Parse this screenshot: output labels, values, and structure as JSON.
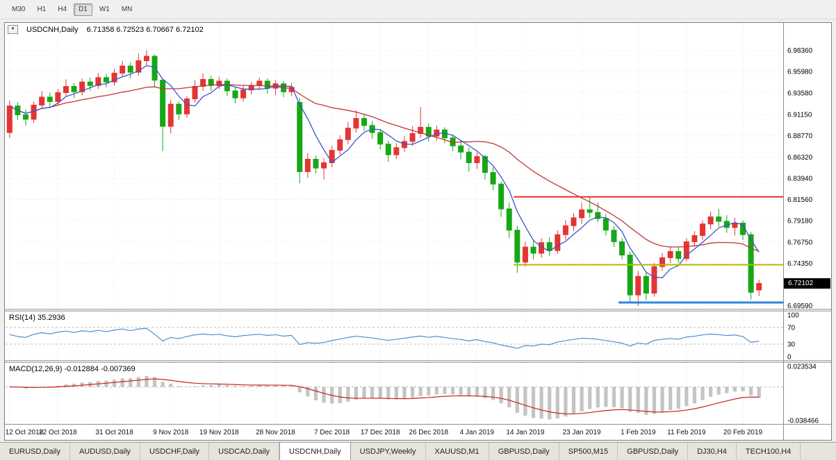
{
  "toolbar": {
    "timeframes": [
      "M30",
      "H1",
      "H4",
      "D1",
      "W1",
      "MN"
    ],
    "active": "D1"
  },
  "chart": {
    "headers": {
      "main_symbol": "USDCNH,Daily",
      "main_ohlc": "6.71358 6.72523 6.70667 6.72102",
      "rsi": "RSI(14) 35.2936",
      "macd": "MACD(12,26,9) -0.012884 -0.007369"
    },
    "price_axis": {
      "current_price": "6.72102"
    }
  },
  "chart_data": {
    "type": "candlestick",
    "symbol": "USDCNH",
    "timeframe": "Daily",
    "current_ohlc": {
      "open": 6.71358,
      "high": 6.72523,
      "low": 6.70667,
      "close": 6.72102
    },
    "up_color": "#e43434",
    "down_color": "#16a716",
    "y_axis_labels": [
      {
        "text": "6.98360",
        "price": 6.9836
      },
      {
        "text": "6.95980",
        "price": 6.9598
      },
      {
        "text": "6.93580",
        "price": 6.9358
      },
      {
        "text": "6.91150",
        "price": 6.9115
      },
      {
        "text": "6.88770",
        "price": 6.8877
      },
      {
        "text": "6.86320",
        "price": 6.8632
      },
      {
        "text": "6.83940",
        "price": 6.8394
      },
      {
        "text": "6.81560",
        "price": 6.8156
      },
      {
        "text": "6.79180",
        "price": 6.7918
      },
      {
        "text": "6.76750",
        "price": 6.7675
      },
      {
        "text": "6.74350",
        "price": 6.7435
      },
      {
        "text": "6.69590",
        "price": 6.6959
      }
    ],
    "x_ticks": [
      {
        "bar": 0,
        "label": "12 Oct 2018"
      },
      {
        "bar": 6,
        "label": "22 Oct 2018"
      },
      {
        "bar": 13,
        "label": "31 Oct 2018"
      },
      {
        "bar": 20,
        "label": "9 Nov 2018"
      },
      {
        "bar": 26,
        "label": "19 Nov 2018"
      },
      {
        "bar": 33,
        "label": "28 Nov 2018"
      },
      {
        "bar": 40,
        "label": "7 Dec 2018"
      },
      {
        "bar": 46,
        "label": "17 Dec 2018"
      },
      {
        "bar": 52,
        "label": "26 Dec 2018"
      },
      {
        "bar": 58,
        "label": "4 Jan 2019"
      },
      {
        "bar": 64,
        "label": "14 Jan 2019"
      },
      {
        "bar": 71,
        "label": "23 Jan 2019"
      },
      {
        "bar": 78,
        "label": "1 Feb 2019"
      },
      {
        "bar": 84,
        "label": "11 Feb 2019"
      },
      {
        "bar": 91,
        "label": "20 Feb 2019"
      }
    ],
    "candles": [
      [
        6.891,
        6.927,
        6.885,
        6.921
      ],
      [
        6.921,
        6.925,
        6.905,
        6.911
      ],
      [
        6.911,
        6.917,
        6.899,
        6.906
      ],
      [
        6.906,
        6.926,
        6.902,
        6.922
      ],
      [
        6.922,
        6.938,
        6.918,
        6.931
      ],
      [
        6.931,
        6.936,
        6.92,
        6.926
      ],
      [
        6.926,
        6.94,
        6.922,
        6.936
      ],
      [
        6.936,
        6.951,
        6.932,
        6.943
      ],
      [
        6.943,
        6.947,
        6.93,
        6.937
      ],
      [
        6.937,
        6.952,
        6.933,
        6.948
      ],
      [
        6.948,
        6.953,
        6.938,
        6.944
      ],
      [
        6.944,
        6.958,
        6.94,
        6.953
      ],
      [
        6.953,
        6.957,
        6.942,
        6.948
      ],
      [
        6.948,
        6.963,
        6.944,
        6.958
      ],
      [
        6.958,
        6.972,
        6.954,
        6.966
      ],
      [
        6.966,
        6.97,
        6.952,
        6.959
      ],
      [
        6.959,
        6.98,
        6.955,
        6.972
      ],
      [
        6.972,
        6.9836,
        6.966,
        6.977
      ],
      [
        6.977,
        6.979,
        6.942,
        6.95
      ],
      [
        6.95,
        6.952,
        6.87,
        6.898
      ],
      [
        6.898,
        6.928,
        6.89,
        6.923
      ],
      [
        6.923,
        6.926,
        6.905,
        6.912
      ],
      [
        6.912,
        6.932,
        6.908,
        6.929
      ],
      [
        6.929,
        6.95,
        6.925,
        6.943
      ],
      [
        6.943,
        6.958,
        6.938,
        6.951
      ],
      [
        6.951,
        6.955,
        6.938,
        6.944
      ],
      [
        6.944,
        6.954,
        6.94,
        6.949
      ],
      [
        6.949,
        6.952,
        6.932,
        6.938
      ],
      [
        6.938,
        6.942,
        6.924,
        6.93
      ],
      [
        6.93,
        6.944,
        6.926,
        6.939
      ],
      [
        6.939,
        6.948,
        6.934,
        6.944
      ],
      [
        6.944,
        6.953,
        6.939,
        6.949
      ],
      [
        6.949,
        6.952,
        6.935,
        6.941
      ],
      [
        6.941,
        6.95,
        6.933,
        6.946
      ],
      [
        6.946,
        6.949,
        6.931,
        6.937
      ],
      [
        6.937,
        6.947,
        6.932,
        6.942
      ],
      [
        6.925,
        6.93,
        6.834,
        6.847
      ],
      [
        6.847,
        6.868,
        6.84,
        6.861
      ],
      [
        6.861,
        6.865,
        6.845,
        6.851
      ],
      [
        6.851,
        6.862,
        6.838,
        6.857
      ],
      [
        6.857,
        6.876,
        6.852,
        6.871
      ],
      [
        6.871,
        6.888,
        6.866,
        6.883
      ],
      [
        6.883,
        6.903,
        6.878,
        6.896
      ],
      [
        6.896,
        6.916,
        6.891,
        6.907
      ],
      [
        6.907,
        6.912,
        6.893,
        6.899
      ],
      [
        6.899,
        6.904,
        6.884,
        6.891
      ],
      [
        6.891,
        6.895,
        6.872,
        6.878
      ],
      [
        6.878,
        6.882,
        6.858,
        6.866
      ],
      [
        6.866,
        6.879,
        6.861,
        6.874
      ],
      [
        6.874,
        6.887,
        6.869,
        6.881
      ],
      [
        6.881,
        6.898,
        6.876,
        6.89
      ],
      [
        6.89,
        6.92,
        6.885,
        6.897
      ],
      [
        6.897,
        6.901,
        6.881,
        6.887
      ],
      [
        6.887,
        6.899,
        6.882,
        6.894
      ],
      [
        6.894,
        6.897,
        6.879,
        6.885
      ],
      [
        6.885,
        6.889,
        6.87,
        6.876
      ],
      [
        6.876,
        6.881,
        6.861,
        6.869
      ],
      [
        6.869,
        6.874,
        6.847,
        6.857
      ],
      [
        6.857,
        6.869,
        6.85,
        6.864
      ],
      [
        6.864,
        6.866,
        6.838,
        6.846
      ],
      [
        6.846,
        6.852,
        6.826,
        6.833
      ],
      [
        6.833,
        6.836,
        6.796,
        6.805
      ],
      [
        6.805,
        6.812,
        6.772,
        6.781
      ],
      [
        6.781,
        6.786,
        6.733,
        6.745
      ],
      [
        6.745,
        6.768,
        6.74,
        6.762
      ],
      [
        6.762,
        6.77,
        6.748,
        6.755
      ],
      [
        6.755,
        6.772,
        6.75,
        6.767
      ],
      [
        6.767,
        6.773,
        6.752,
        6.758
      ],
      [
        6.758,
        6.781,
        6.754,
        6.776
      ],
      [
        6.776,
        6.792,
        6.77,
        6.786
      ],
      [
        6.786,
        6.8,
        6.78,
        6.795
      ],
      [
        6.795,
        6.812,
        6.788,
        6.804
      ],
      [
        6.804,
        6.818,
        6.795,
        6.801
      ],
      [
        6.801,
        6.812,
        6.79,
        6.794
      ],
      [
        6.794,
        6.799,
        6.775,
        6.781
      ],
      [
        6.781,
        6.786,
        6.762,
        6.768
      ],
      [
        6.768,
        6.772,
        6.748,
        6.753
      ],
      [
        6.753,
        6.757,
        6.7,
        6.708
      ],
      [
        6.708,
        6.735,
        6.696,
        6.729
      ],
      [
        6.729,
        6.734,
        6.702,
        6.71
      ],
      [
        6.71,
        6.744,
        6.706,
        6.74
      ],
      [
        6.74,
        6.755,
        6.735,
        6.75
      ],
      [
        6.75,
        6.762,
        6.744,
        6.757
      ],
      [
        6.757,
        6.763,
        6.744,
        6.749
      ],
      [
        6.749,
        6.772,
        6.746,
        6.768
      ],
      [
        6.768,
        6.78,
        6.762,
        6.775
      ],
      [
        6.775,
        6.792,
        6.77,
        6.788
      ],
      [
        6.788,
        6.802,
        6.782,
        6.796
      ],
      [
        6.796,
        6.805,
        6.785,
        6.791
      ],
      [
        6.791,
        6.798,
        6.778,
        6.784
      ],
      [
        6.784,
        6.795,
        6.775,
        6.789
      ],
      [
        6.789,
        6.792,
        6.77,
        6.776
      ],
      [
        6.776,
        6.779,
        6.703,
        6.711
      ],
      [
        6.71358,
        6.72523,
        6.70667,
        6.72102
      ]
    ],
    "ma_fast": {
      "period": 5,
      "color": "#3a56c4"
    },
    "ma_slow": {
      "period": 20,
      "color": "#c83232"
    },
    "hlines": [
      {
        "price": 6.8185,
        "color": "#e03030",
        "width": 2,
        "from_bar": 63
      },
      {
        "price": 6.742,
        "color": "#b5b800",
        "width": 2,
        "from_bar": 63
      },
      {
        "price": 6.6995,
        "color": "#2e86de",
        "width": 3,
        "from_bar": 76
      }
    ],
    "rsi": {
      "period": 14,
      "value_text": "35.2936",
      "color": "#4a90d9",
      "levels": [
        70,
        30
      ],
      "scale_labels": [
        "100",
        "70",
        "30",
        "0"
      ]
    },
    "macd": {
      "fast": 12,
      "slow": 26,
      "signal": 9,
      "main_text": "-0.012884",
      "signal_text": "-0.007369",
      "hist_color": "#c4c4c4",
      "signal_color": "#cc2020",
      "scale_max": 0.023534,
      "scale_min": -0.038466,
      "scale_labels": [
        "0.023534",
        "-0.038466"
      ]
    }
  },
  "bottom_tabs": {
    "active_index": 4,
    "items": [
      "EURUSD,Daily",
      "AUDUSD,Daily",
      "USDCHF,Daily",
      "USDCAD,Daily",
      "USDCNH,Daily",
      "USDJPY,Weekly",
      "XAUUSD,M1",
      "GBPUSD,Daily",
      "SP500,M15",
      "GBPUSD,Daily",
      "DJ30,H4",
      "TECH100,H4"
    ]
  }
}
